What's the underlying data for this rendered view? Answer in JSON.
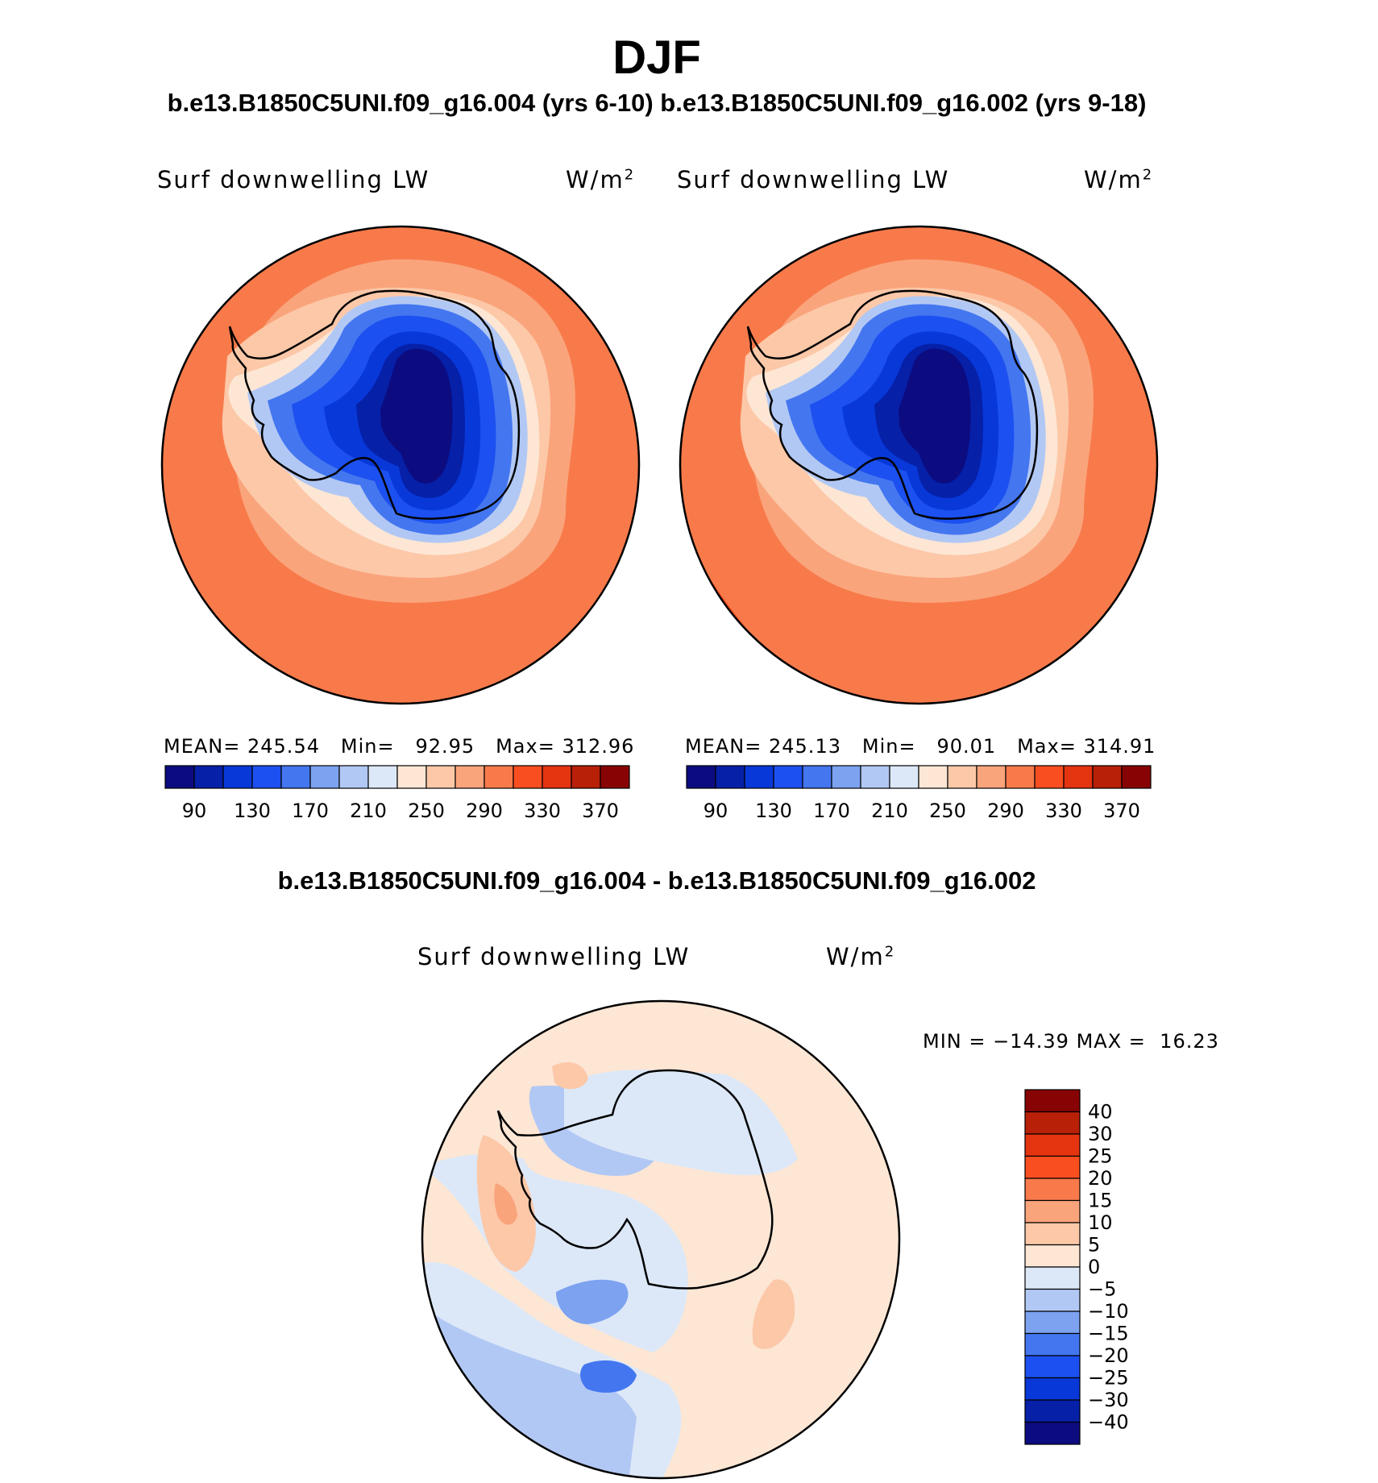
{
  "figure": {
    "season": "DJF",
    "subtitle_top": "b.e13.B1850C5UNI.f09_g16.004 (yrs 6-10) b.e13.B1850C5UNI.f09_g16.002 (yrs 9-18)",
    "subtitle_diff": "b.e13.B1850C5UNI.f09_g16.004 - b.e13.B1850C5UNI.f09_g16.002"
  },
  "panels": [
    {
      "variable": "Surf downwelling LW",
      "units_base": "W/m",
      "units_exp": "2",
      "mean_label": "MEAN=",
      "mean": "245.54",
      "min_label": "Min=",
      "min": "92.95",
      "max_label": "Max=",
      "max": "312.96"
    },
    {
      "variable": "Surf downwelling LW",
      "units_base": "W/m",
      "units_exp": "2",
      "mean_label": "MEAN=",
      "mean": "245.13",
      "min_label": "Min=",
      "min": "90.01",
      "max_label": "Max=",
      "max": "314.91"
    }
  ],
  "diff_panel": {
    "variable": "Surf downwelling LW",
    "units_base": "W/m",
    "units_exp": "2",
    "min_label": "MIN =",
    "min": "−14.39",
    "max_label": "MAX =",
    "max": "16.23"
  },
  "colorbar_abs": {
    "colors": [
      "#0c0c80",
      "#0620a8",
      "#0838d8",
      "#1c50f0",
      "#4476f0",
      "#7ca2f0",
      "#b2c8f4",
      "#dce8f8",
      "#fde6d4",
      "#fcc8a8",
      "#faa47c",
      "#f87a4a",
      "#f84e20",
      "#e43410",
      "#b82008",
      "#880404"
    ],
    "tick_labels": [
      "90",
      "130",
      "170",
      "210",
      "250",
      "290",
      "330",
      "370"
    ]
  },
  "colorbar_diff": {
    "colors": [
      "#0c0c80",
      "#0620a8",
      "#0838d8",
      "#1c50f0",
      "#4476f0",
      "#7ca2f0",
      "#b2c8f4",
      "#dce8f8",
      "#fde6d4",
      "#fcc8a8",
      "#faa47c",
      "#f87a4a",
      "#f84e20",
      "#e43410",
      "#b82008",
      "#880404"
    ],
    "tick_labels": [
      "−40",
      "−30",
      "−25",
      "−20",
      "−15",
      "−10",
      "−5",
      "0",
      "5",
      "10",
      "15",
      "20",
      "25",
      "30",
      "40"
    ]
  },
  "map_colors": {
    "ocean_far": "#f87a4a",
    "ocean_mid": "#faa47c",
    "ocean_near": "#fcc8a8",
    "coast": "#fde6d4",
    "ice_edge": "#b2c8f4",
    "plateau_1": "#4476f0",
    "plateau_2": "#1c50f0",
    "plateau_3": "#0838d8",
    "plateau_4": "#0620a8",
    "plateau_core": "#0c0c80",
    "warm_extreme": "#f84e20",
    "diff_base": "#fde6d4",
    "diff_neg1": "#dce8f8",
    "diff_neg2": "#b2c8f4",
    "diff_neg3": "#7ca2f0",
    "diff_neg4": "#4476f0",
    "diff_pos1": "#fcc8a8",
    "diff_pos2": "#faa47c"
  }
}
